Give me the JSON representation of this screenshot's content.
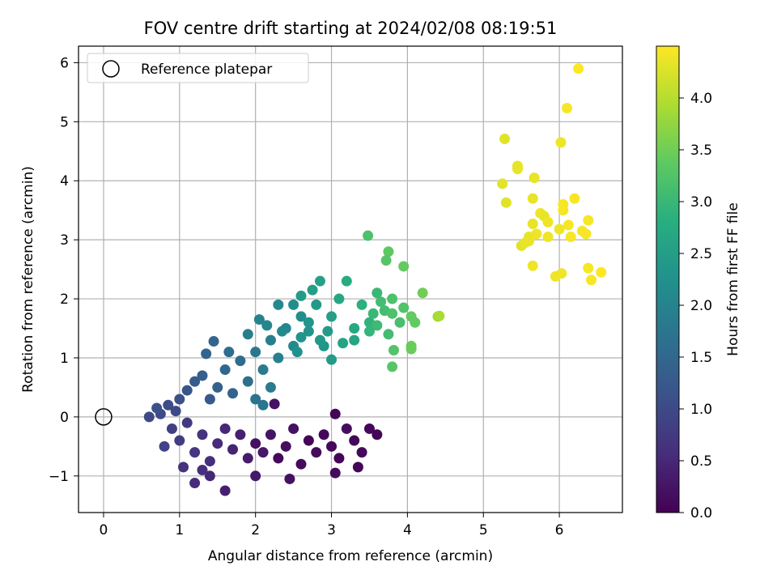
{
  "chart_data": {
    "type": "scatter",
    "title": "FOV centre drift starting at 2024/02/08 08:19:51",
    "xlabel": "Angular distance from reference (arcmin)",
    "ylabel": "Rotation from reference (arcmin)",
    "xlim": [
      -0.33,
      6.83
    ],
    "ylim": [
      -1.62,
      6.28
    ],
    "xticks": [
      0,
      1,
      2,
      3,
      4,
      5,
      6
    ],
    "yticks": [
      -1,
      0,
      1,
      2,
      3,
      4,
      5,
      6
    ],
    "grid": true,
    "legend": {
      "placement": "upper-left",
      "entries": [
        "Reference platepar"
      ]
    },
    "reference_point": {
      "x": 0,
      "y": 0
    },
    "colorbar": {
      "label": "Hours from first FF file",
      "min": 0.0,
      "max": 4.5,
      "ticks": [
        "0.0",
        "0.5",
        "1.0",
        "1.5",
        "2.0",
        "2.5",
        "3.0",
        "3.5",
        "4.0"
      ],
      "colormap": "viridis"
    },
    "points": [
      {
        "x": 2.0,
        "y": -0.45,
        "h": 0.2
      },
      {
        "x": 2.1,
        "y": -0.6,
        "h": 0.3
      },
      {
        "x": 2.2,
        "y": -0.3,
        "h": 0.25
      },
      {
        "x": 2.3,
        "y": -0.7,
        "h": 0.1
      },
      {
        "x": 2.4,
        "y": -0.5,
        "h": 0.15
      },
      {
        "x": 2.5,
        "y": -0.2,
        "h": 0.2
      },
      {
        "x": 2.6,
        "y": -0.8,
        "h": 0.1
      },
      {
        "x": 2.7,
        "y": -0.4,
        "h": 0.05
      },
      {
        "x": 2.8,
        "y": -0.6,
        "h": 0.12
      },
      {
        "x": 2.9,
        "y": -0.3,
        "h": 0.08
      },
      {
        "x": 3.0,
        "y": -0.5,
        "h": 0.1
      },
      {
        "x": 3.1,
        "y": -0.7,
        "h": 0.05
      },
      {
        "x": 3.2,
        "y": -0.2,
        "h": 0.15
      },
      {
        "x": 3.3,
        "y": -0.4,
        "h": 0.07
      },
      {
        "x": 3.4,
        "y": -0.6,
        "h": 0.1
      },
      {
        "x": 3.05,
        "y": 0.05,
        "h": 0.05
      },
      {
        "x": 3.6,
        "y": -0.3,
        "h": 0.05
      },
      {
        "x": 3.5,
        "y": -0.2,
        "h": 0.08
      },
      {
        "x": 3.35,
        "y": -0.85,
        "h": 0.06
      },
      {
        "x": 3.05,
        "y": -0.95,
        "h": 0.1
      },
      {
        "x": 2.45,
        "y": -1.05,
        "h": 0.2
      },
      {
        "x": 2.0,
        "y": -1.0,
        "h": 0.3
      },
      {
        "x": 2.25,
        "y": 0.22,
        "h": 0.2
      },
      {
        "x": 1.9,
        "y": -0.7,
        "h": 0.35
      },
      {
        "x": 1.8,
        "y": -0.3,
        "h": 0.4
      },
      {
        "x": 1.7,
        "y": -0.55,
        "h": 0.45
      },
      {
        "x": 1.6,
        "y": -0.2,
        "h": 0.5
      },
      {
        "x": 1.5,
        "y": -0.45,
        "h": 0.55
      },
      {
        "x": 1.4,
        "y": -0.75,
        "h": 0.6
      },
      {
        "x": 1.3,
        "y": -0.3,
        "h": 0.65
      },
      {
        "x": 1.2,
        "y": -0.6,
        "h": 0.7
      },
      {
        "x": 1.1,
        "y": -0.1,
        "h": 0.75
      },
      {
        "x": 1.0,
        "y": -0.4,
        "h": 0.8
      },
      {
        "x": 0.9,
        "y": -0.2,
        "h": 0.85
      },
      {
        "x": 0.8,
        "y": -0.5,
        "h": 0.9
      },
      {
        "x": 1.6,
        "y": -1.25,
        "h": 0.4
      },
      {
        "x": 1.4,
        "y": -1.0,
        "h": 0.5
      },
      {
        "x": 1.2,
        "y": -1.12,
        "h": 0.55
      },
      {
        "x": 1.05,
        "y": -0.85,
        "h": 0.65
      },
      {
        "x": 1.3,
        "y": -0.9,
        "h": 0.6
      },
      {
        "x": 0.95,
        "y": 0.1,
        "h": 1.0
      },
      {
        "x": 1.0,
        "y": 0.3,
        "h": 1.1
      },
      {
        "x": 1.1,
        "y": 0.45,
        "h": 1.2
      },
      {
        "x": 0.85,
        "y": 0.2,
        "h": 1.05
      },
      {
        "x": 0.75,
        "y": 0.05,
        "h": 1.0
      },
      {
        "x": 0.6,
        "y": 0.0,
        "h": 1.0
      },
      {
        "x": 0.7,
        "y": 0.15,
        "h": 1.1
      },
      {
        "x": 1.2,
        "y": 0.6,
        "h": 1.3
      },
      {
        "x": 1.3,
        "y": 0.7,
        "h": 1.35
      },
      {
        "x": 1.4,
        "y": 0.3,
        "h": 1.25
      },
      {
        "x": 1.5,
        "y": 0.5,
        "h": 1.4
      },
      {
        "x": 1.6,
        "y": 0.8,
        "h": 1.5
      },
      {
        "x": 1.7,
        "y": 0.4,
        "h": 1.45
      },
      {
        "x": 1.8,
        "y": 0.95,
        "h": 1.6
      },
      {
        "x": 1.9,
        "y": 0.6,
        "h": 1.65
      },
      {
        "x": 1.45,
        "y": 1.28,
        "h": 1.5
      },
      {
        "x": 1.35,
        "y": 1.07,
        "h": 1.45
      },
      {
        "x": 1.65,
        "y": 1.1,
        "h": 1.6
      },
      {
        "x": 2.0,
        "y": 1.1,
        "h": 1.8
      },
      {
        "x": 2.1,
        "y": 0.8,
        "h": 1.85
      },
      {
        "x": 2.2,
        "y": 1.3,
        "h": 1.9
      },
      {
        "x": 2.3,
        "y": 1.0,
        "h": 1.95
      },
      {
        "x": 2.4,
        "y": 1.5,
        "h": 2.05
      },
      {
        "x": 2.5,
        "y": 1.2,
        "h": 2.1
      },
      {
        "x": 2.6,
        "y": 1.7,
        "h": 2.2
      },
      {
        "x": 2.2,
        "y": 0.5,
        "h": 1.85
      },
      {
        "x": 2.1,
        "y": 0.2,
        "h": 1.75
      },
      {
        "x": 2.0,
        "y": 0.3,
        "h": 1.7
      },
      {
        "x": 1.9,
        "y": 1.4,
        "h": 1.9
      },
      {
        "x": 2.05,
        "y": 1.65,
        "h": 2.0
      },
      {
        "x": 2.15,
        "y": 1.55,
        "h": 2.05
      },
      {
        "x": 2.3,
        "y": 1.9,
        "h": 2.1
      },
      {
        "x": 2.7,
        "y": 1.45,
        "h": 2.3
      },
      {
        "x": 2.8,
        "y": 1.9,
        "h": 2.4
      },
      {
        "x": 2.9,
        "y": 1.2,
        "h": 2.35
      },
      {
        "x": 2.75,
        "y": 2.15,
        "h": 2.5
      },
      {
        "x": 2.85,
        "y": 2.3,
        "h": 2.55
      },
      {
        "x": 2.6,
        "y": 2.05,
        "h": 2.45
      },
      {
        "x": 3.0,
        "y": 1.7,
        "h": 2.55
      },
      {
        "x": 3.1,
        "y": 2.0,
        "h": 2.65
      },
      {
        "x": 3.2,
        "y": 2.3,
        "h": 2.75
      },
      {
        "x": 3.3,
        "y": 1.5,
        "h": 2.7
      },
      {
        "x": 3.4,
        "y": 1.9,
        "h": 2.85
      },
      {
        "x": 3.5,
        "y": 1.6,
        "h": 2.9
      },
      {
        "x": 3.6,
        "y": 2.1,
        "h": 3.0
      },
      {
        "x": 2.5,
        "y": 1.9,
        "h": 2.2
      },
      {
        "x": 2.7,
        "y": 1.6,
        "h": 2.35
      },
      {
        "x": 2.95,
        "y": 1.45,
        "h": 2.45
      },
      {
        "x": 3.15,
        "y": 1.25,
        "h": 2.6
      },
      {
        "x": 3.3,
        "y": 1.3,
        "h": 2.65
      },
      {
        "x": 3.0,
        "y": 0.97,
        "h": 2.45
      },
      {
        "x": 2.85,
        "y": 1.3,
        "h": 2.4
      },
      {
        "x": 2.6,
        "y": 1.35,
        "h": 2.3
      },
      {
        "x": 2.55,
        "y": 1.1,
        "h": 2.25
      },
      {
        "x": 2.35,
        "y": 1.45,
        "h": 2.1
      },
      {
        "x": 3.7,
        "y": 1.8,
        "h": 3.1
      },
      {
        "x": 3.8,
        "y": 2.0,
        "h": 3.2
      },
      {
        "x": 3.9,
        "y": 1.6,
        "h": 3.15
      },
      {
        "x": 3.75,
        "y": 1.4,
        "h": 3.1
      },
      {
        "x": 3.6,
        "y": 1.55,
        "h": 3.05
      },
      {
        "x": 3.5,
        "y": 1.45,
        "h": 2.95
      },
      {
        "x": 3.8,
        "y": 1.75,
        "h": 3.2
      },
      {
        "x": 3.95,
        "y": 1.85,
        "h": 3.25
      },
      {
        "x": 3.65,
        "y": 1.95,
        "h": 3.1
      },
      {
        "x": 3.55,
        "y": 1.75,
        "h": 3.0
      },
      {
        "x": 4.05,
        "y": 1.7,
        "h": 3.4
      },
      {
        "x": 4.1,
        "y": 1.6,
        "h": 3.4
      },
      {
        "x": 4.05,
        "y": 1.15,
        "h": 3.45
      },
      {
        "x": 4.05,
        "y": 1.2,
        "h": 3.45
      },
      {
        "x": 4.2,
        "y": 2.1,
        "h": 3.5
      },
      {
        "x": 3.95,
        "y": 2.55,
        "h": 3.4
      },
      {
        "x": 3.75,
        "y": 2.8,
        "h": 3.35
      },
      {
        "x": 3.72,
        "y": 2.65,
        "h": 3.3
      },
      {
        "x": 3.48,
        "y": 3.07,
        "h": 3.2
      },
      {
        "x": 3.8,
        "y": 0.85,
        "h": 3.3
      },
      {
        "x": 3.82,
        "y": 1.13,
        "h": 3.25
      },
      {
        "x": 4.4,
        "y": 1.7,
        "h": 3.85
      },
      {
        "x": 4.42,
        "y": 1.71,
        "h": 3.9
      },
      {
        "x": 5.28,
        "y": 4.71,
        "h": 4.3
      },
      {
        "x": 5.25,
        "y": 3.95,
        "h": 4.3
      },
      {
        "x": 5.3,
        "y": 3.63,
        "h": 4.3
      },
      {
        "x": 5.45,
        "y": 4.25,
        "h": 4.35
      },
      {
        "x": 5.45,
        "y": 4.2,
        "h": 4.35
      },
      {
        "x": 5.5,
        "y": 2.9,
        "h": 4.3
      },
      {
        "x": 5.6,
        "y": 3.05,
        "h": 4.35
      },
      {
        "x": 5.65,
        "y": 3.27,
        "h": 4.35
      },
      {
        "x": 5.65,
        "y": 2.56,
        "h": 4.4
      },
      {
        "x": 5.65,
        "y": 3.7,
        "h": 4.35
      },
      {
        "x": 5.67,
        "y": 4.05,
        "h": 4.35
      },
      {
        "x": 5.7,
        "y": 3.1,
        "h": 4.4
      },
      {
        "x": 5.75,
        "y": 3.45,
        "h": 4.4
      },
      {
        "x": 5.8,
        "y": 3.4,
        "h": 4.35
      },
      {
        "x": 5.85,
        "y": 3.3,
        "h": 4.4
      },
      {
        "x": 5.85,
        "y": 3.05,
        "h": 4.4
      },
      {
        "x": 5.95,
        "y": 2.38,
        "h": 4.4
      },
      {
        "x": 6.0,
        "y": 3.18,
        "h": 4.4
      },
      {
        "x": 6.02,
        "y": 4.65,
        "h": 4.4
      },
      {
        "x": 6.05,
        "y": 3.6,
        "h": 4.45
      },
      {
        "x": 6.05,
        "y": 3.5,
        "h": 4.45
      },
      {
        "x": 6.1,
        "y": 5.23,
        "h": 4.45
      },
      {
        "x": 6.12,
        "y": 3.25,
        "h": 4.45
      },
      {
        "x": 6.15,
        "y": 3.05,
        "h": 4.45
      },
      {
        "x": 6.2,
        "y": 3.7,
        "h": 4.45
      },
      {
        "x": 6.25,
        "y": 5.9,
        "h": 4.5
      },
      {
        "x": 6.3,
        "y": 3.15,
        "h": 4.45
      },
      {
        "x": 6.35,
        "y": 3.1,
        "h": 4.45
      },
      {
        "x": 6.38,
        "y": 3.33,
        "h": 4.45
      },
      {
        "x": 6.38,
        "y": 2.52,
        "h": 4.45
      },
      {
        "x": 6.42,
        "y": 2.32,
        "h": 4.45
      },
      {
        "x": 6.55,
        "y": 2.45,
        "h": 4.5
      },
      {
        "x": 6.03,
        "y": 2.43,
        "h": 4.4
      },
      {
        "x": 5.55,
        "y": 2.95,
        "h": 4.35
      },
      {
        "x": 5.6,
        "y": 2.98,
        "h": 4.35
      }
    ]
  }
}
